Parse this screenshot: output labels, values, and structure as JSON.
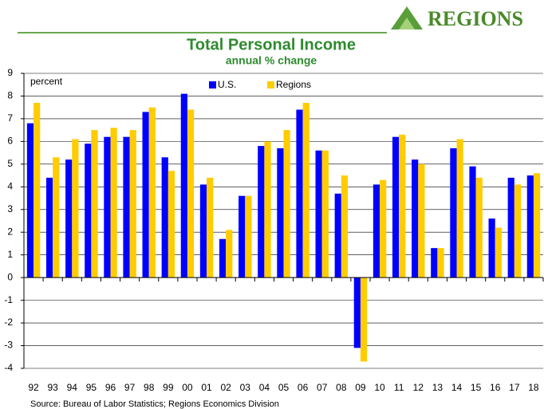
{
  "logo": "REGIONS",
  "chart_data": {
    "type": "bar",
    "title": "Total Personal Income",
    "subtitle": "annual % change",
    "y_label": "percent",
    "source": "Source: Bureau of Labor Statistics; Regions Economics Division",
    "categories": [
      "92",
      "93",
      "94",
      "95",
      "96",
      "97",
      "98",
      "99",
      "00",
      "01",
      "02",
      "03",
      "04",
      "05",
      "06",
      "07",
      "08",
      "09",
      "10",
      "11",
      "12",
      "13",
      "14",
      "15",
      "16",
      "17",
      "18"
    ],
    "series": [
      {
        "name": "U.S.",
        "color": "#0000ff",
        "values": [
          6.8,
          4.4,
          5.2,
          5.9,
          6.2,
          6.2,
          7.3,
          5.3,
          8.1,
          4.1,
          1.7,
          3.6,
          5.8,
          5.7,
          7.4,
          5.6,
          3.7,
          -3.1,
          4.1,
          6.2,
          5.2,
          1.3,
          5.7,
          4.9,
          2.6,
          4.4,
          4.5
        ]
      },
      {
        "name": "Regions",
        "color": "#ffcc00",
        "values": [
          7.7,
          5.3,
          6.1,
          6.5,
          6.6,
          6.5,
          7.5,
          4.7,
          7.4,
          4.4,
          2.1,
          3.6,
          6.0,
          6.5,
          7.7,
          5.6,
          4.5,
          -3.7,
          4.3,
          6.3,
          5.0,
          1.3,
          6.1,
          4.4,
          2.2,
          4.1,
          4.6
        ]
      }
    ],
    "ylim": [
      -4,
      9
    ],
    "yticks": [
      -4,
      -3,
      -2,
      -1,
      0,
      1,
      2,
      3,
      4,
      5,
      6,
      7,
      8,
      9
    ],
    "grid": true
  }
}
